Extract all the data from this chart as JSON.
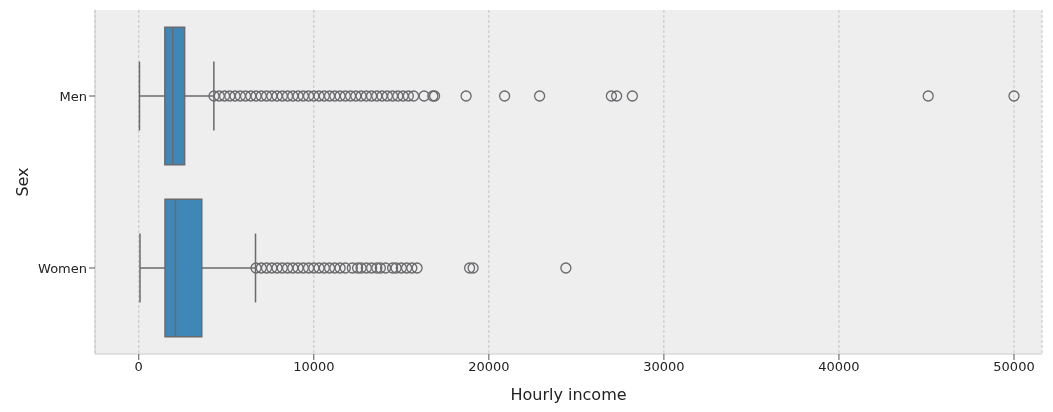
{
  "chart_data": {
    "type": "box",
    "orientation": "horizontal",
    "categories": [
      "Men",
      "Women"
    ],
    "color": "#3f87b6",
    "xlabel": "Hourly  income",
    "ylabel": "Sex",
    "xlim": [
      -2500,
      51600
    ],
    "xticks": [
      0,
      10000,
      20000,
      30000,
      40000,
      50000
    ],
    "grid": "x",
    "boxes": [
      {
        "low": 40,
        "q1": 1490,
        "median": 1940,
        "q3": 2620,
        "high": 4290,
        "outliers": [
          4300,
          4600,
          4900,
          5200,
          5500,
          5800,
          6100,
          6400,
          6700,
          7000,
          7300,
          7600,
          7900,
          8200,
          8500,
          8800,
          9100,
          9400,
          9700,
          10000,
          10300,
          10600,
          10900,
          11200,
          11500,
          11800,
          12100,
          12400,
          12700,
          13000,
          13300,
          13600,
          13900,
          14200,
          14500,
          14800,
          15100,
          15400,
          15700,
          16300,
          16800,
          16900,
          18700,
          20900,
          22900,
          27000,
          27300,
          28200,
          45100,
          50000
        ]
      },
      {
        "low": 70,
        "q1": 1500,
        "median": 2090,
        "q3": 3600,
        "high": 6670,
        "outliers": [
          6700,
          7000,
          7300,
          7600,
          7900,
          8200,
          8500,
          8800,
          9100,
          9400,
          9700,
          10000,
          10300,
          10600,
          10900,
          11200,
          11500,
          11800,
          12200,
          12500,
          12700,
          13000,
          13300,
          13600,
          13800,
          14100,
          14500,
          14700,
          15000,
          15300,
          15600,
          15900,
          18900,
          19100,
          24400
        ]
      }
    ]
  }
}
